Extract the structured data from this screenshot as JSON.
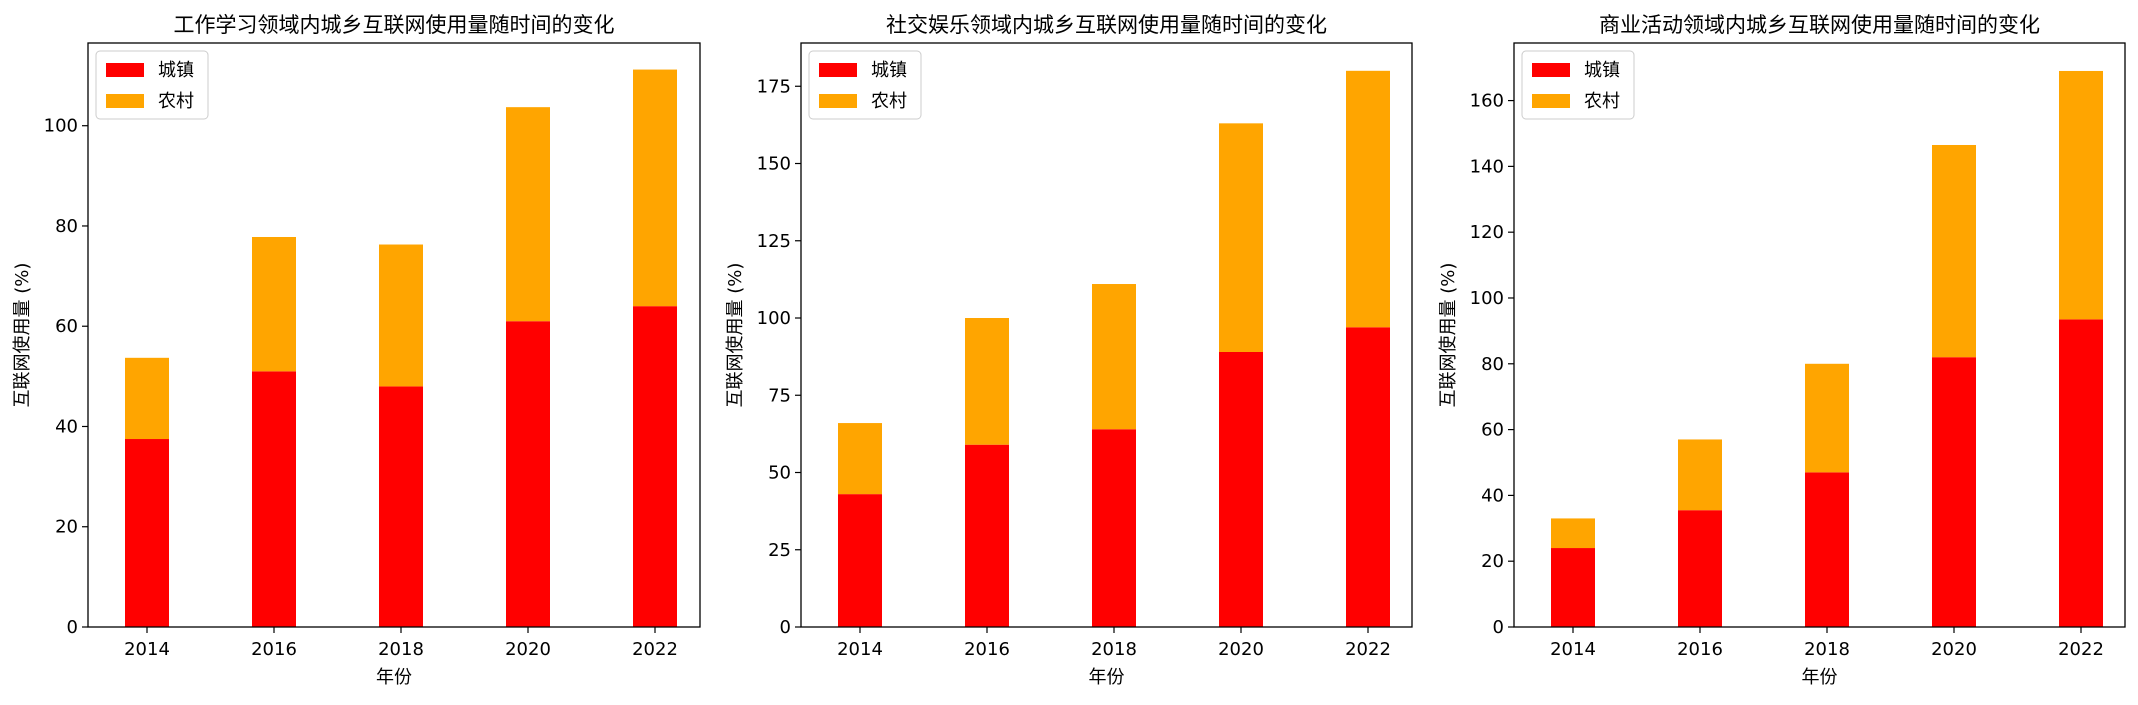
{
  "chart_data": [
    {
      "type": "bar",
      "stacked": true,
      "title": "工作学习领域内城乡互联网使用量随时间的变化",
      "xlabel": "年份",
      "ylabel": "互联网使用量 (%)",
      "categories": [
        "2014",
        "2016",
        "2018",
        "2020",
        "2022"
      ],
      "series": [
        {
          "name": "城镇",
          "color": "#ff0000",
          "values": [
            37.5,
            51.0,
            48.0,
            61.0,
            64.0
          ]
        },
        {
          "name": "农村",
          "color": "#ffa500",
          "values": [
            16.2,
            26.8,
            28.3,
            42.7,
            47.2
          ]
        }
      ],
      "ylim": [
        0,
        116.5
      ],
      "yticks": [
        0,
        20,
        40,
        60,
        80,
        100
      ],
      "legend": "top-left",
      "grid": false
    },
    {
      "type": "bar",
      "stacked": true,
      "title": "社交娱乐领域内城乡互联网使用量随时间的变化",
      "xlabel": "年份",
      "ylabel": "互联网使用量 (%)",
      "categories": [
        "2014",
        "2016",
        "2018",
        "2020",
        "2022"
      ],
      "series": [
        {
          "name": "城镇",
          "color": "#ff0000",
          "values": [
            43.0,
            59.0,
            64.0,
            89.0,
            97.0
          ]
        },
        {
          "name": "农村",
          "color": "#ffa500",
          "values": [
            23.0,
            41.0,
            47.0,
            74.0,
            83.0
          ]
        }
      ],
      "ylim": [
        0,
        189
      ],
      "yticks": [
        0,
        25,
        50,
        75,
        100,
        125,
        150,
        175
      ],
      "legend": "top-left",
      "grid": false
    },
    {
      "type": "bar",
      "stacked": true,
      "title": "商业活动领域内城乡互联网使用量随时间的变化",
      "xlabel": "年份",
      "ylabel": "互联网使用量 (%)",
      "categories": [
        "2014",
        "2016",
        "2018",
        "2020",
        "2022"
      ],
      "series": [
        {
          "name": "城镇",
          "color": "#ff0000",
          "values": [
            24.0,
            35.5,
            47.0,
            82.0,
            93.5
          ]
        },
        {
          "name": "农村",
          "color": "#ffa500",
          "values": [
            9.0,
            21.5,
            33.0,
            64.5,
            75.5
          ]
        }
      ],
      "ylim": [
        0,
        177.5
      ],
      "yticks": [
        0,
        20,
        40,
        60,
        80,
        100,
        120,
        140,
        160
      ],
      "legend": "top-left",
      "grid": false
    }
  ]
}
